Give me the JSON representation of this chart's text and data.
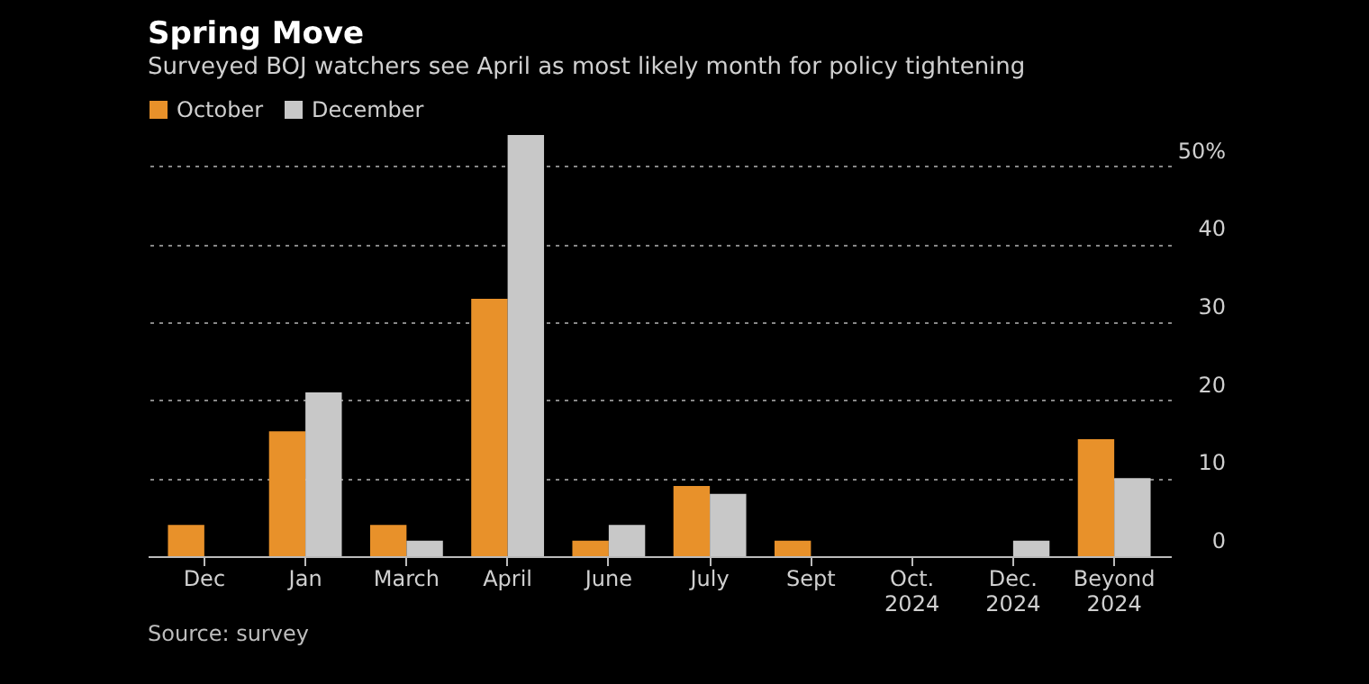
{
  "chart_data": {
    "type": "bar",
    "title": "Spring Move",
    "subtitle": "Surveyed BOJ watchers see April as most likely month for policy tightening",
    "categories": [
      "Dec",
      "Jan",
      "March",
      "April",
      "June",
      "July",
      "Sept",
      "Oct. 2024",
      "Dec. 2024",
      "Beyond 2024"
    ],
    "series": [
      {
        "name": "October",
        "color": "#e8912a",
        "values": [
          4,
          16,
          4,
          33,
          2,
          9,
          2,
          0,
          0,
          15
        ]
      },
      {
        "name": "December",
        "color": "#c8c8c8",
        "values": [
          0,
          21,
          2,
          54,
          4,
          8,
          0,
          0,
          2,
          10
        ]
      }
    ],
    "ylim": [
      0,
      54
    ],
    "yticks": [
      0,
      10,
      20,
      30,
      40,
      {
        "value": 50,
        "label": "50%"
      }
    ],
    "grid": "y",
    "legend": "top left",
    "annotations": [
      "Source: survey"
    ]
  }
}
